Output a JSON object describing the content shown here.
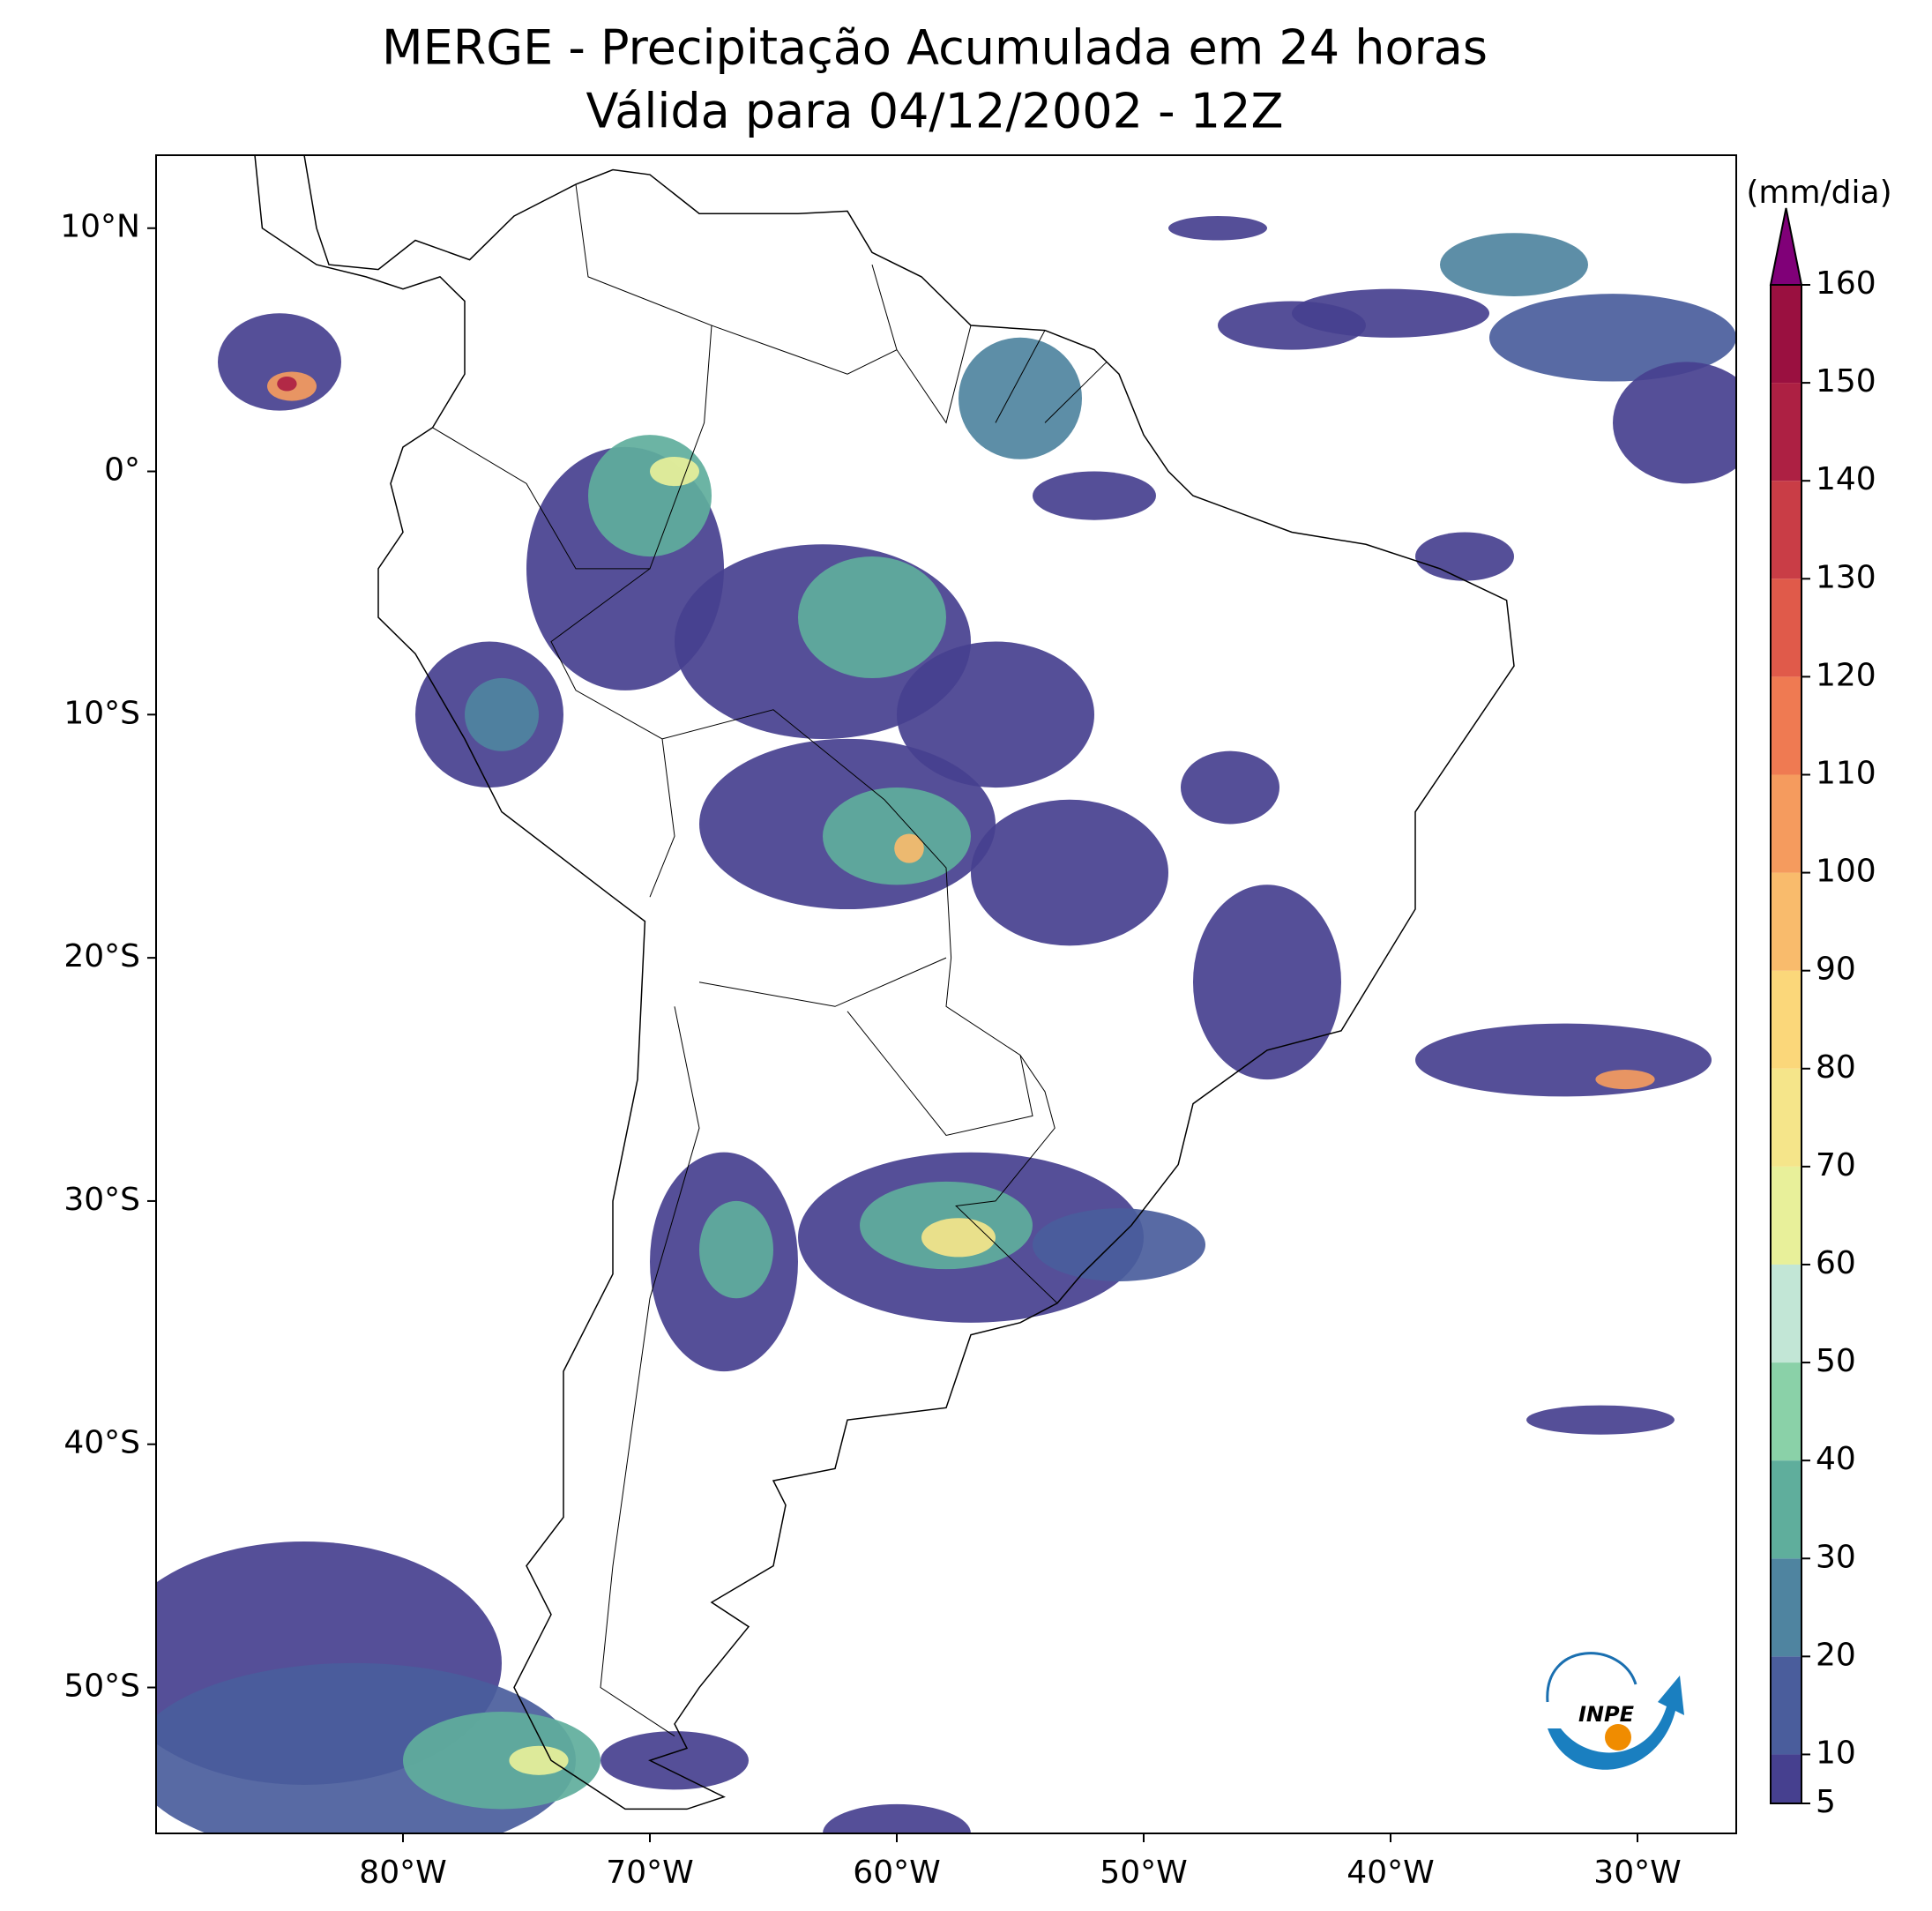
{
  "map": {
    "title": "MERGE - Precipitação Acumulada em 24 horas",
    "subtitle": "Válida para 04/12/2002 - 12Z",
    "xlim": [
      -90,
      -26
    ],
    "ylim": [
      -56,
      13
    ],
    "xticks": [
      {
        "value": -80,
        "label": "80°W"
      },
      {
        "value": -70,
        "label": "70°W"
      },
      {
        "value": -60,
        "label": "60°W"
      },
      {
        "value": -50,
        "label": "50°W"
      },
      {
        "value": -40,
        "label": "40°W"
      },
      {
        "value": -30,
        "label": "30°W"
      }
    ],
    "yticks": [
      {
        "value": 10,
        "label": "10°N"
      },
      {
        "value": 0,
        "label": "0°"
      },
      {
        "value": -10,
        "label": "10°S"
      },
      {
        "value": -20,
        "label": "20°S"
      },
      {
        "value": -30,
        "label": "30°S"
      },
      {
        "value": -40,
        "label": "40°S"
      },
      {
        "value": -50,
        "label": "50°S"
      }
    ],
    "colorbar": {
      "label": "(mm/dia)",
      "lim": [
        5,
        160
      ],
      "ticks": [
        5,
        10,
        20,
        30,
        40,
        50,
        60,
        70,
        80,
        90,
        100,
        110,
        120,
        130,
        140,
        150,
        160
      ],
      "colors": [
        "#46408f",
        "#4a5d9c",
        "#4f84a0",
        "#5fae9c",
        "#8ad1a8",
        "#c2e6d6",
        "#e8f09a",
        "#f5e58a",
        "#fbd77a",
        "#f9bb6c",
        "#f59b5e",
        "#ef7a52",
        "#e05a4a",
        "#c93d46",
        "#ad2043",
        "#9a1040"
      ],
      "extend_color": "#800078"
    },
    "logo": "INPE"
  }
}
